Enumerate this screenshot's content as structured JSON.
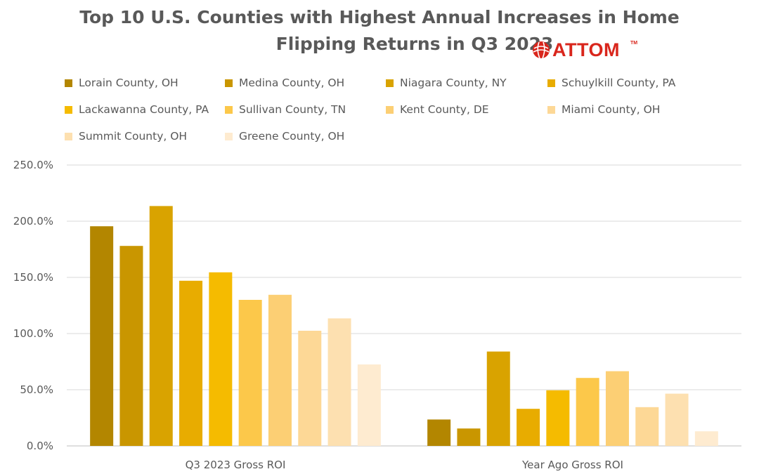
{
  "logo": {
    "text": "ATTOM",
    "tm": "TM"
  },
  "chart_data": {
    "type": "bar",
    "title": "Top 10 U.S. Counties with Highest Annual Increases in Home Flipping Returns in Q3 2023",
    "title_lines": [
      "Top 10 U.S. Counties with Highest Annual Increases in Home",
      "Flipping Returns in Q3 2023"
    ],
    "categories": [
      "Q3 2023 Gross ROI",
      "Year Ago Gross ROI"
    ],
    "ylim": [
      0,
      250
    ],
    "yticks": [
      "0.0%",
      "50.0%",
      "100.0%",
      "150.0%",
      "200.0%",
      "250.0%"
    ],
    "ytick_values": [
      0,
      50,
      100,
      150,
      200,
      250
    ],
    "grid": true,
    "legend_position": "top",
    "series": [
      {
        "name": "Lorain County, OH",
        "color": "#b38600",
        "values": [
          195.5,
          23.5
        ]
      },
      {
        "name": "Medina County, OH",
        "color": "#c99600",
        "values": [
          178.0,
          15.5
        ]
      },
      {
        "name": "Niagara County, NY",
        "color": "#d9a300",
        "values": [
          213.5,
          84.0
        ]
      },
      {
        "name": "Schuylkill County, PA",
        "color": "#e8ac00",
        "values": [
          147.0,
          33.0
        ]
      },
      {
        "name": "Lackawanna County, PA",
        "color": "#f5bb00",
        "values": [
          154.5,
          49.5
        ]
      },
      {
        "name": "Sullivan County, TN",
        "color": "#fcc84a",
        "values": [
          130.0,
          60.5
        ]
      },
      {
        "name": "Kent County, DE",
        "color": "#fccf74",
        "values": [
          134.5,
          66.5
        ]
      },
      {
        "name": "Miami County, OH",
        "color": "#fdd896",
        "values": [
          102.5,
          34.5
        ]
      },
      {
        "name": "Summit County, OH",
        "color": "#fde0b0",
        "values": [
          113.5,
          46.5
        ]
      },
      {
        "name": "Greene County, OH",
        "color": "#feebd0",
        "values": [
          72.5,
          13.0
        ]
      }
    ]
  }
}
